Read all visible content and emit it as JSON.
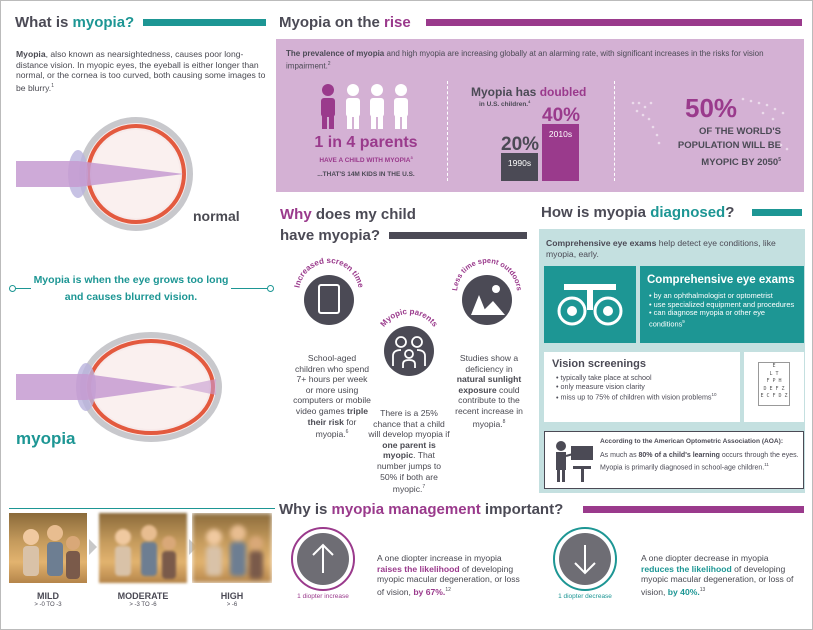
{
  "colors": {
    "teal": "#1d9694",
    "purple": "#9a3a8c",
    "gray": "#4b4a55",
    "lilac": "#d4b1d4"
  },
  "what": {
    "title_a": "What is ",
    "title_b": "myopia?",
    "p_lead": "Myopia",
    "p_rest": ", also known as nearsightedness, causes poor long-distance vision. In myopic eyes, the eyeball is either longer than normal, or the cornea is too curved, both causing some images to be blurry.",
    "p_ref": "1",
    "normal_label": "normal",
    "callout": "Myopia is when the eye grows too long and causes blurred vision.",
    "myopia_label": "myopia"
  },
  "rise": {
    "title_a": "Myopia on the ",
    "title_b": "rise",
    "intro_a": "The prevalence of myopia",
    "intro_b": " and high myopia are increasing globally at an alarming rate, with significant increases in the risks for vision impairment.",
    "intro_ref": "2",
    "parents_big": "1 in 4 parents",
    "parents_sub": "HAVE A CHILD WITH MYOPIA",
    "parents_sub_ref": "3",
    "parents_kids": "...THAT'S 14M KIDS IN THE U.S.",
    "doubled_a": "Myopia has ",
    "doubled_b": "doubled",
    "doubled_sub": "in U.S. children.",
    "doubled_ref": "4",
    "bar1_value": "20%",
    "bar1_label": "1990s",
    "bar2_value": "40%",
    "bar2_label": "2010s",
    "world_pct": "50%",
    "world_text": "OF THE WORLD'S POPULATION WILL BE MYOPIC BY 2050",
    "world_ref": "5"
  },
  "why": {
    "title_a": "Why",
    "title_b": " does my child have myopia?",
    "screen_title": "Increased screen time",
    "screen_text_a": "School-aged children who spend 7+ hours per week or more using computers or mobile video games ",
    "screen_text_b": "triple their risk",
    "screen_text_c": " for myopia.",
    "screen_ref": "6",
    "parents_title": "Myopic parents",
    "parents_text_a": "There is a 25% chance that a child will develop myopia if ",
    "parents_text_b": "one parent is myopic",
    "parents_text_c": ". That number jumps to 50% if both are myopic.",
    "parents_ref": "7",
    "outdoors_title": "Less time spent outdoors",
    "outdoors_text_a": "Studies show a deficiency in ",
    "outdoors_text_b": "natural sunlight exposure",
    "outdoors_text_c": " could contribute to the recent increase in myopia.",
    "outdoors_ref": "8"
  },
  "diag": {
    "title_a": "How is myopia ",
    "title_b": "diagnosed",
    "title_c": "?",
    "intro_a": "Comprehensive eye exams",
    "intro_b": " help detect eye conditions, like myopia, early.",
    "exam_title": "Comprehensive eye exams",
    "exam_items": [
      "by an ophthalmologist or optometrist",
      "use specialized equipment and procedures",
      "can diagnose myopia or other eye conditions"
    ],
    "exam_ref": "9",
    "vs_title": "Vision screenings",
    "vs_items": [
      "typically take place at school",
      "only measure vision clarity",
      "miss up to 75% of children with vision problems"
    ],
    "vs_ref": "10",
    "chart_letters": "E\nL T\nF P H\nD E F Z\nE C F D Z",
    "aoa_title": "According to the American Optometric Association (AOA):",
    "aoa_a": "As much as ",
    "aoa_b": "80% of a child's learning",
    "aoa_c": " occurs through the eyes. Myopia is primarily diagnosed in school-age children.",
    "aoa_ref": "11"
  },
  "mgmt": {
    "title_a": "Why is ",
    "title_b": "myopia management",
    "title_c": " important?",
    "levels": [
      {
        "name": "MILD",
        "range": "> -0 TO -3"
      },
      {
        "name": "MODERATE",
        "range": "> -3 TO -6"
      },
      {
        "name": "HIGH",
        "range": "> -6"
      }
    ],
    "inc_label": "1 diopter increase",
    "inc_a": "A one diopter increase in myopia ",
    "inc_b": "raises the likelihood",
    "inc_c": " of developing myopic macular degeneration, or loss of vision, ",
    "inc_d": "by 67%.",
    "inc_ref": "12",
    "dec_label": "1 diopter decrease",
    "dec_a": "A one diopter decrease in myopia ",
    "dec_b": "reduces the likelihood",
    "dec_c": " of developing myopic macular degeneration, or loss of vision, ",
    "dec_d": "by 40%.",
    "dec_ref": "13"
  }
}
